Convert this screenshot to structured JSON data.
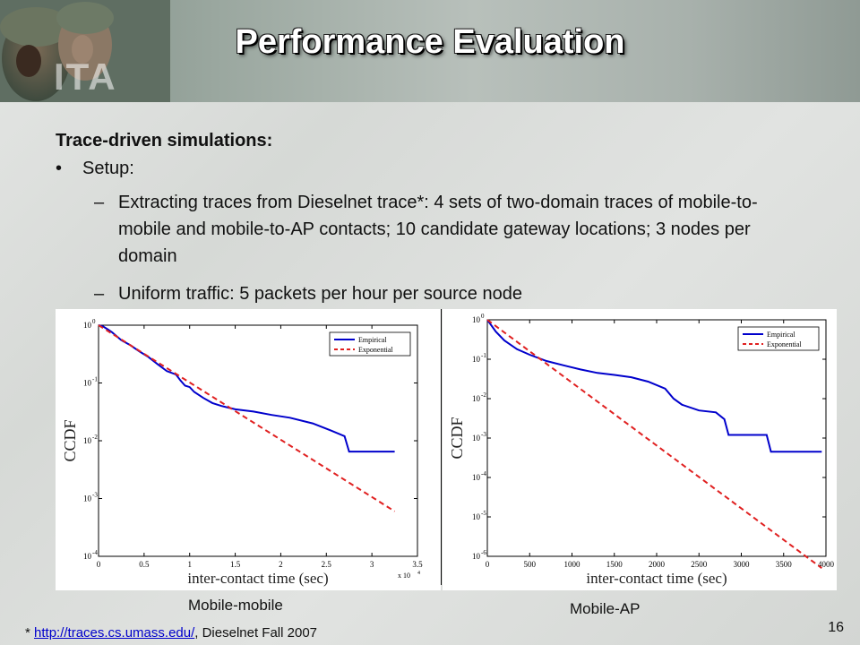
{
  "slide": {
    "title": "Performance Evaluation",
    "banner_logo": "ITA",
    "heading": "Trace-driven simulations:",
    "bullet": "Setup:",
    "subbullets": [
      "Extracting traces from Dieselnet trace*: 4 sets of two-domain traces of mobile-to-mobile and mobile-to-AP contacts; 10 candidate gateway locations; 3 nodes per domain",
      "Uniform traffic: 5 packets per hour per source node"
    ],
    "dash": "–",
    "bullet_symbol": "•",
    "captions": [
      "Mobile-mobile",
      "Mobile-AP"
    ],
    "footnote": {
      "prefix": "* ",
      "link": "http://traces.cs.umass.edu/",
      "suffix": ", Dieselnet Fall 2007"
    },
    "page_number": "16",
    "colors": {
      "empirical": "#0000cc",
      "exponential": "#e02020",
      "link": "#0000cc"
    }
  },
  "chart_data": [
    {
      "type": "line",
      "xlabel": "inter-contact time (sec)",
      "ylabel": "CCDF",
      "x_multiplier_label": "x 10",
      "x_multiplier_exp": "4",
      "xlim": [
        0,
        3.5
      ],
      "ylim_log10": [
        -4,
        0
      ],
      "yscale": "log",
      "xticks": [
        "0",
        "0.5",
        "1",
        "1.5",
        "2",
        "2.5",
        "3",
        "3.5"
      ],
      "yticks_exp": [
        "0",
        "-1",
        "-2",
        "-3",
        "-4"
      ],
      "legend_position": "top-right",
      "legend": [
        "Empirical",
        "Exponential"
      ],
      "series": [
        {
          "name": "Empirical",
          "style": "solid",
          "points": [
            [
              0,
              1
            ],
            [
              0.05,
              0.95
            ],
            [
              0.1,
              0.85
            ],
            [
              0.15,
              0.75
            ],
            [
              0.25,
              0.55
            ],
            [
              0.35,
              0.45
            ],
            [
              0.45,
              0.35
            ],
            [
              0.55,
              0.28
            ],
            [
              0.65,
              0.21
            ],
            [
              0.75,
              0.16
            ],
            [
              0.85,
              0.14
            ],
            [
              0.9,
              0.11
            ],
            [
              0.95,
              0.09
            ],
            [
              1.0,
              0.085
            ],
            [
              1.05,
              0.07
            ],
            [
              1.15,
              0.055
            ],
            [
              1.25,
              0.045
            ],
            [
              1.35,
              0.04
            ],
            [
              1.5,
              0.035
            ],
            [
              1.7,
              0.032
            ],
            [
              1.9,
              0.028
            ],
            [
              2.1,
              0.025
            ],
            [
              2.35,
              0.02
            ],
            [
              2.55,
              0.015
            ],
            [
              2.7,
              0.012
            ],
            [
              2.75,
              0.0065
            ],
            [
              3.25,
              0.0065
            ]
          ]
        },
        {
          "name": "Exponential",
          "style": "dashed",
          "points": [
            [
              0,
              1
            ],
            [
              3.25,
              0.0006
            ]
          ]
        }
      ]
    },
    {
      "type": "line",
      "xlabel": "inter-contact time (sec)",
      "ylabel": "CCDF",
      "xlim": [
        0,
        4000
      ],
      "ylim_log10": [
        -6,
        0
      ],
      "yscale": "log",
      "xticks": [
        "0",
        "500",
        "1000",
        "1500",
        "2000",
        "2500",
        "3000",
        "3500",
        "4000"
      ],
      "yticks_exp": [
        "0",
        "-1",
        "-2",
        "-3",
        "-4",
        "-5",
        "-6"
      ],
      "legend_position": "top-right",
      "legend": [
        "Empirical",
        "Exponential"
      ],
      "series": [
        {
          "name": "Empirical",
          "style": "solid",
          "points": [
            [
              0,
              1
            ],
            [
              100,
              0.5
            ],
            [
              200,
              0.3
            ],
            [
              350,
              0.18
            ],
            [
              500,
              0.13
            ],
            [
              700,
              0.09
            ],
            [
              900,
              0.07
            ],
            [
              1100,
              0.055
            ],
            [
              1300,
              0.045
            ],
            [
              1500,
              0.04
            ],
            [
              1700,
              0.035
            ],
            [
              1900,
              0.027
            ],
            [
              2100,
              0.018
            ],
            [
              2200,
              0.01
            ],
            [
              2300,
              0.007
            ],
            [
              2500,
              0.005
            ],
            [
              2700,
              0.0045
            ],
            [
              2800,
              0.003
            ],
            [
              2850,
              0.0012
            ],
            [
              3300,
              0.0012
            ],
            [
              3350,
              0.00045
            ],
            [
              3950,
              0.00045
            ]
          ]
        },
        {
          "name": "Exponential",
          "style": "dashed",
          "points": [
            [
              0,
              1
            ],
            [
              3950,
              5e-07
            ]
          ]
        }
      ]
    }
  ]
}
